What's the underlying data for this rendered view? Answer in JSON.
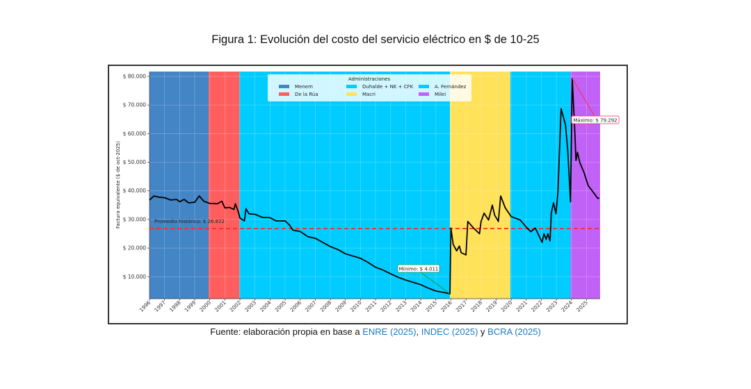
{
  "chart_data": {
    "type": "line",
    "title": "Figura 1: Evolución del costo del servicio eléctrico en $ de 10-25",
    "ylabel": "Factura equivalente ($ de oct-2025)",
    "xlabel": "",
    "xlim": [
      1996,
      2025.9
    ],
    "ylim": [
      2300,
      81700
    ],
    "grid": true,
    "x_ticks": [
      "1996",
      "1997",
      "1998",
      "1999",
      "2000",
      "2001",
      "2002",
      "2003",
      "2004",
      "2005",
      "2006",
      "2007",
      "2008",
      "2009",
      "2010",
      "2011",
      "2012",
      "2013",
      "2014",
      "2015",
      "2016",
      "2017",
      "2018",
      "2019",
      "2020",
      "2021",
      "2022",
      "2023",
      "2024",
      "2025"
    ],
    "y_ticks": [
      {
        "value": 10000,
        "label": "$ 10.000"
      },
      {
        "value": 20000,
        "label": "$ 20.000"
      },
      {
        "value": 30000,
        "label": "$ 30.000"
      },
      {
        "value": 40000,
        "label": "$ 40.000"
      },
      {
        "value": 50000,
        "label": "$ 50.000"
      },
      {
        "value": 60000,
        "label": "$ 60.000"
      },
      {
        "value": 70000,
        "label": "$ 70.000"
      },
      {
        "value": 80000,
        "label": "$ 80.000"
      }
    ],
    "legend": {
      "title": "Administraciones",
      "placement": "top-center",
      "entries": [
        {
          "name": "Menem",
          "color": "#4385c5"
        },
        {
          "name": "De la Rúa",
          "color": "#ff5e5e"
        },
        {
          "name": "Duhalde + NK + CFK",
          "color": "#00ccff"
        },
        {
          "name": "Macri",
          "color": "#ffe15a"
        },
        {
          "name": "A. Fernández",
          "color": "#00ccff"
        },
        {
          "name": "Milei",
          "color": "#c162f7"
        }
      ]
    },
    "periods": [
      {
        "name": "Menem",
        "start": 1996.0,
        "end": 1999.92,
        "color": "#4385c5"
      },
      {
        "name": "De la Rúa",
        "start": 1999.92,
        "end": 2001.97,
        "color": "#ff5e5e"
      },
      {
        "name": "Duhalde + NK + CFK",
        "start": 2001.97,
        "end": 2015.94,
        "color": "#00ccff"
      },
      {
        "name": "Macri",
        "start": 2015.94,
        "end": 2019.94,
        "color": "#ffe15a"
      },
      {
        "name": "A. Fernández",
        "start": 2019.94,
        "end": 2023.94,
        "color": "#00ccff"
      },
      {
        "name": "Milei",
        "start": 2023.94,
        "end": 2025.9,
        "color": "#c162f7"
      }
    ],
    "series": [
      {
        "color": "#000000",
        "x": [
          1996.0,
          1996.3,
          1996.6,
          1997.0,
          1997.4,
          1997.8,
          1998.0,
          1998.3,
          1998.6,
          1999.0,
          1999.3,
          1999.6,
          2000.0,
          2000.5,
          2000.8,
          2001.0,
          2001.3,
          2001.6,
          2001.7,
          2001.9,
          2002.0,
          2002.3,
          2002.4,
          2002.6,
          2003.0,
          2003.5,
          2004.0,
          2004.4,
          2005.0,
          2005.3,
          2005.5,
          2006.0,
          2006.5,
          2007.0,
          2007.5,
          2008.0,
          2008.5,
          2009.0,
          2009.5,
          2010.0,
          2010.5,
          2011.0,
          2011.5,
          2012.0,
          2012.5,
          2013.0,
          2013.5,
          2014.0,
          2014.5,
          2015.0,
          2015.5,
          2015.94,
          2016.0,
          2016.15,
          2016.38,
          2016.56,
          2016.68,
          2017.0,
          2017.12,
          2017.5,
          2017.9,
          2018.0,
          2018.2,
          2018.5,
          2018.75,
          2018.9,
          2019.15,
          2019.3,
          2019.6,
          2020.0,
          2020.6,
          2020.97,
          2021.3,
          2021.6,
          2022.05,
          2022.17,
          2022.32,
          2022.43,
          2022.58,
          2022.66,
          2022.81,
          2022.97,
          2023.1,
          2023.31,
          2023.6,
          2023.75,
          2023.94,
          2024.05,
          2024.2,
          2024.3,
          2024.4,
          2024.55,
          2024.85,
          2025.1,
          2025.45,
          2025.75,
          2025.85
        ],
        "y": [
          36800,
          38200,
          37800,
          37600,
          36800,
          37000,
          36200,
          37000,
          35800,
          36000,
          38200,
          36400,
          35600,
          35500,
          36400,
          34000,
          34200,
          33500,
          35500,
          32500,
          30500,
          29500,
          33800,
          32000,
          31800,
          30700,
          30600,
          29500,
          29500,
          28000,
          26300,
          25800,
          24000,
          23400,
          22000,
          20500,
          19500,
          18000,
          17200,
          16400,
          15000,
          13300,
          12300,
          11000,
          9800,
          8800,
          8000,
          7200,
          6000,
          5000,
          4500,
          4011,
          27000,
          21300,
          19000,
          20700,
          18400,
          17600,
          29300,
          27000,
          25000,
          29300,
          32200,
          29800,
          35000,
          31500,
          29300,
          38200,
          34100,
          31000,
          29800,
          27500,
          25700,
          27000,
          22000,
          25000,
          23000,
          25000,
          22500,
          32200,
          35800,
          32000,
          39500,
          68700,
          63100,
          54250,
          36150,
          79292,
          63100,
          50600,
          53450,
          50000,
          46200,
          41900,
          39500,
          37350,
          37500
        ]
      }
    ],
    "reference_line": {
      "value": 26822,
      "label": "Promedio histórico: $ 26.822",
      "color": "#ff2a2a"
    },
    "annotations": [
      {
        "label": "Mínimo: $ 4.011",
        "x": 2015.94,
        "y": 4011,
        "color": "#1a9a3a"
      },
      {
        "label": "Máximo: $ 79.292",
        "x": 2024.05,
        "y": 79292,
        "color": "#ff2a4a"
      }
    ]
  },
  "source": {
    "prefix": "Fuente: elaboración propia en base a ",
    "enre": "ENRE",
    "enre_year": " (2025)",
    "sep1": ", ",
    "indec": "INDEC",
    "indec_year": " (2025)",
    "sep2": " y ",
    "bcra": "BCRA",
    "bcra_year": " (2025)"
  }
}
